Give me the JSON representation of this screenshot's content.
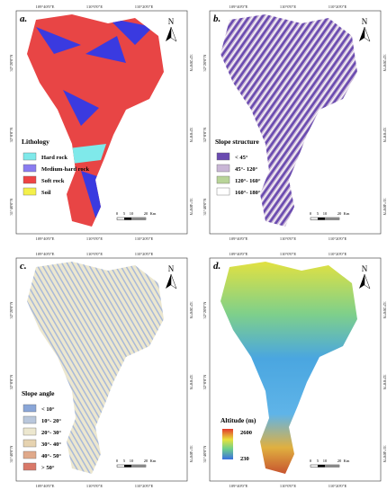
{
  "coordinates": {
    "lon": [
      "109°40'0\"E",
      "110°0'0\"E",
      "110°20'0\"E"
    ],
    "lat": [
      "32°20'0\"N",
      "32°0'0\"N",
      "31°40'0\"N"
    ]
  },
  "north": "N",
  "scale": [
    "0",
    "5",
    "10",
    "20",
    "Km"
  ],
  "panels": [
    {
      "label": "a.",
      "legend_title": "Lithology",
      "legend_items": [
        {
          "label": "Hard rock",
          "color": "#7fe9ea"
        },
        {
          "label": "Medium-hard rock",
          "color": "#8a7cf0"
        },
        {
          "label": "Soft rock",
          "color": "#ee4444"
        },
        {
          "label": "Soil",
          "color": "#f4f04a"
        }
      ]
    },
    {
      "label": "b.",
      "legend_title": "Slope structure",
      "legend_items": [
        {
          "label": "< 45°",
          "color": "#6a4bb0"
        },
        {
          "label": "45°- 120°",
          "color": "#c9b6d6"
        },
        {
          "label": "120°- 160°",
          "color": "#b8d498"
        },
        {
          "label": "160°- 180°",
          "color": "#ffffff"
        }
      ]
    },
    {
      "label": "c.",
      "legend_title": "Slope angle",
      "legend_items": [
        {
          "label": "< 10°",
          "color": "#8aa6d8"
        },
        {
          "label": "10°- 20°",
          "color": "#b9c7dc"
        },
        {
          "label": "20°- 30°",
          "color": "#ece7cf"
        },
        {
          "label": "30°- 40°",
          "color": "#e6d3b0"
        },
        {
          "label": "40°- 50°",
          "color": "#e0a98a"
        },
        {
          "label": "> 50°",
          "color": "#d97868"
        }
      ]
    },
    {
      "label": "d.",
      "legend_title": "Altitude (m)",
      "legend_range": [
        2600,
        230
      ]
    }
  ]
}
